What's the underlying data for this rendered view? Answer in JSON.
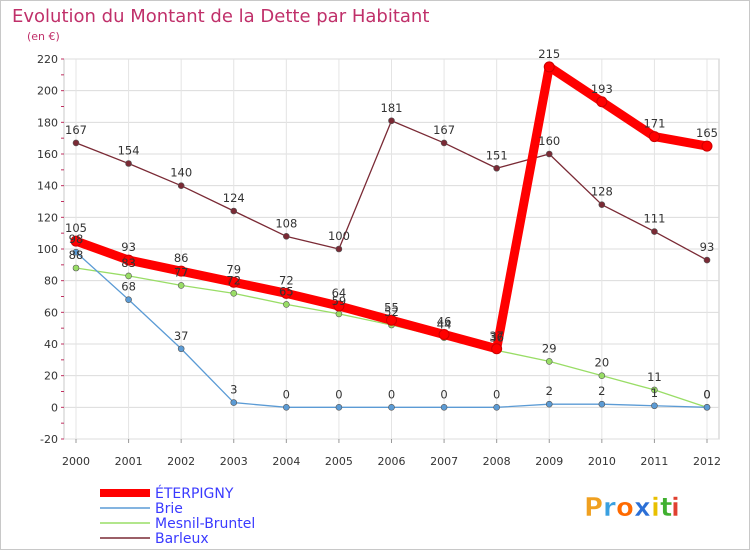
{
  "chart_data": {
    "type": "line",
    "title": "Evolution du Montant de la Dette par Habitant",
    "subtitle": "(en €)",
    "xlabel": "",
    "ylabel": "",
    "x": [
      "2000",
      "2001",
      "2002",
      "2003",
      "2004",
      "2005",
      "2006",
      "2007",
      "2008",
      "2009",
      "2010",
      "2011",
      "2012"
    ],
    "ylim": [
      -20,
      220
    ],
    "yticks": [
      "-20",
      "0",
      "20",
      "40",
      "60",
      "80",
      "100",
      "120",
      "140",
      "160",
      "180",
      "200",
      "220"
    ],
    "grid": true,
    "legend_position": "bottom-left",
    "series": [
      {
        "name": "Barleux",
        "color": "#7a2a35",
        "values": [
          167,
          154,
          140,
          124,
          108,
          100,
          181,
          167,
          151,
          160,
          128,
          111,
          93
        ],
        "labels": [
          "167",
          "154",
          "140",
          "124",
          "108",
          "100",
          "181",
          "167",
          "151",
          "160",
          "128",
          "111",
          "93"
        ]
      },
      {
        "name": "Mesnil-Bruntel",
        "color": "#99dd66",
        "values": [
          88,
          83,
          77,
          72,
          65,
          59,
          52,
          44,
          36,
          29,
          20,
          11,
          0
        ],
        "labels": [
          "88",
          "83",
          "77",
          "72",
          "65",
          "59",
          "52",
          "44",
          "36",
          "29",
          "20",
          "11",
          "0"
        ]
      },
      {
        "name": "Brie",
        "color": "#5b9bd5",
        "values": [
          98,
          68,
          37,
          3,
          0,
          0,
          0,
          0,
          0,
          2,
          2,
          1,
          0
        ],
        "labels": [
          "98",
          "68",
          "37",
          "3",
          "0",
          "0",
          "0",
          "0",
          "0",
          "2",
          "2",
          "1",
          "0"
        ]
      },
      {
        "name": "ÉTERPIGNY",
        "color": "#ff0000",
        "values": [
          105,
          93,
          86,
          79,
          72,
          64,
          55,
          46,
          37,
          215,
          193,
          171,
          165
        ],
        "labels": [
          "105",
          "93",
          "86",
          "79",
          "72",
          "64",
          "55",
          "46",
          "37",
          "215",
          "193",
          "171",
          "165"
        ]
      }
    ]
  },
  "logo": {
    "letters": [
      "P",
      "r",
      "o",
      "x",
      "i",
      "t",
      "i"
    ],
    "colors": [
      "#f0a020",
      "#3aa0e0",
      "#ff6a00",
      "#2b6fd6",
      "#e8c000",
      "#40b030",
      "#e04030"
    ]
  }
}
